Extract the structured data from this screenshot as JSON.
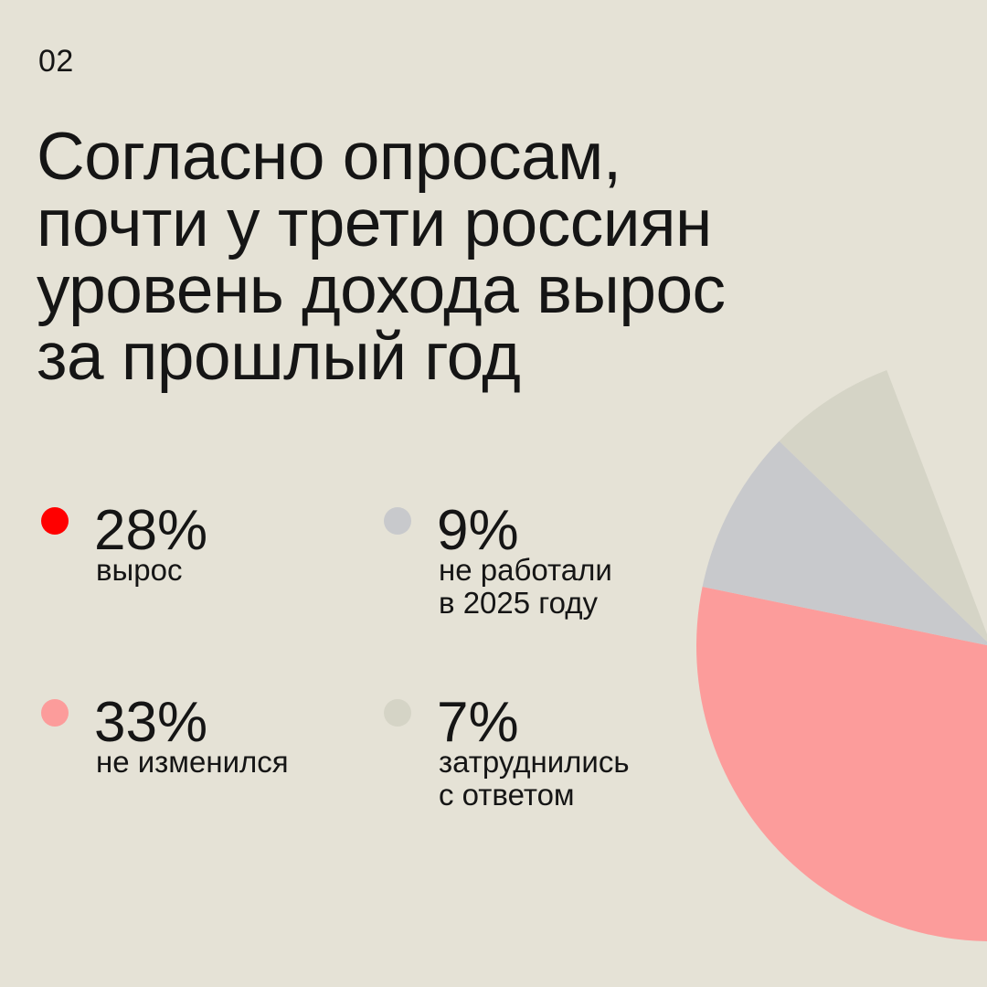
{
  "page_number": "02",
  "headline_lines": [
    "Согласно опросам,",
    "почти у трети россиян",
    "уровень дохода вырос",
    "за прошлый год"
  ],
  "chart_data": {
    "type": "pie",
    "title": "Согласно опросам, почти у трети россиян уровень дохода вырос за прошлый год",
    "legend_placement": "left",
    "slices": [
      {
        "value": 28,
        "label": "28%",
        "caption_lines": [
          "вырос"
        ],
        "color": "#ff0000"
      },
      {
        "value": 33,
        "label": "33%",
        "caption_lines": [
          "не изменился"
        ],
        "color": "#fc9c9b"
      },
      {
        "value": 9,
        "label": "9%",
        "caption_lines": [
          "не работали",
          "в 2025 году"
        ],
        "color": "#c8c9cc"
      },
      {
        "value": 7,
        "label": "7%",
        "caption_lines": [
          "затруднились",
          "с ответом"
        ],
        "color": "#d5d4c6"
      }
    ]
  }
}
